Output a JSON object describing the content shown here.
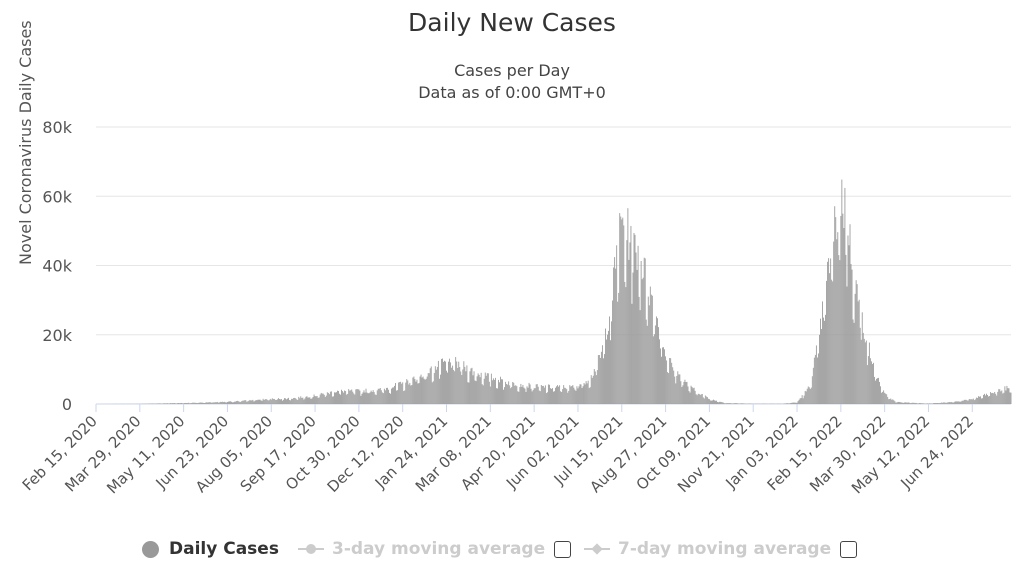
{
  "chart_data": {
    "type": "bar",
    "title": "Daily New Cases",
    "subtitle": [
      "Cases per Day",
      "Data as of 0:00 GMT+0"
    ],
    "ylabel": "Novel Coronavirus Daily Cases",
    "xlabel": "",
    "ylim": [
      0,
      80000
    ],
    "y_ticks": [
      "0",
      "20k",
      "40k",
      "60k",
      "80k"
    ],
    "x_tick_labels": [
      "Feb 15, 2020",
      "Mar 29, 2020",
      "May 11, 2020",
      "Jun 23, 2020",
      "Aug 05, 2020",
      "Sep 17, 2020",
      "Oct 30, 2020",
      "Dec 12, 2020",
      "Jan 24, 2021",
      "Mar 08, 2021",
      "Apr 20, 2021",
      "Jun 02, 2021",
      "Jul 15, 2021",
      "Aug 27, 2021",
      "Oct 09, 2021",
      "Nov 21, 2021",
      "Jan 03, 2022",
      "Feb 15, 2022",
      "Mar 30, 2022",
      "May 12, 2022",
      "Jun 24, 2022"
    ],
    "x_range": [
      "Feb 15, 2020",
      "Aug 01, 2022"
    ],
    "grid": true,
    "legend_position": "bottom",
    "bar_color": "#999999",
    "series": [
      {
        "name": "Daily Cases",
        "points": [
          [
            "2020-02-15",
            0
          ],
          [
            "2020-03-29",
            50
          ],
          [
            "2020-04-20",
            200
          ],
          [
            "2020-05-11",
            300
          ],
          [
            "2020-06-01",
            450
          ],
          [
            "2020-06-23",
            650
          ],
          [
            "2020-07-15",
            1100
          ],
          [
            "2020-08-05",
            1500
          ],
          [
            "2020-08-26",
            1700
          ],
          [
            "2020-09-17",
            2500
          ],
          [
            "2020-10-08",
            3800
          ],
          [
            "2020-10-30",
            3900
          ],
          [
            "2020-11-20",
            4200
          ],
          [
            "2020-12-12",
            6000
          ],
          [
            "2021-01-03",
            9000
          ],
          [
            "2021-01-24",
            12500
          ],
          [
            "2021-02-05",
            12000
          ],
          [
            "2021-02-20",
            9500
          ],
          [
            "2021-03-08",
            8000
          ],
          [
            "2021-03-25",
            6500
          ],
          [
            "2021-04-20",
            5200
          ],
          [
            "2021-05-10",
            5000
          ],
          [
            "2021-05-25",
            5000
          ],
          [
            "2021-06-02",
            5500
          ],
          [
            "2021-06-15",
            8000
          ],
          [
            "2021-06-25",
            15000
          ],
          [
            "2021-07-05",
            30000
          ],
          [
            "2021-07-10",
            45000
          ],
          [
            "2021-07-15",
            54000
          ],
          [
            "2021-07-22",
            50000
          ],
          [
            "2021-08-01",
            45000
          ],
          [
            "2021-08-10",
            35000
          ],
          [
            "2021-08-20",
            24000
          ],
          [
            "2021-08-27",
            15000
          ],
          [
            "2021-09-05",
            10000
          ],
          [
            "2021-09-20",
            5000
          ],
          [
            "2021-10-09",
            1500
          ],
          [
            "2021-10-25",
            300
          ],
          [
            "2021-11-21",
            100
          ],
          [
            "2021-12-20",
            100
          ],
          [
            "2022-01-03",
            500
          ],
          [
            "2022-01-15",
            5000
          ],
          [
            "2022-01-25",
            20000
          ],
          [
            "2022-02-05",
            45000
          ],
          [
            "2022-02-15",
            62000
          ],
          [
            "2022-02-20",
            58000
          ],
          [
            "2022-02-27",
            40000
          ],
          [
            "2022-03-08",
            25000
          ],
          [
            "2022-03-20",
            10000
          ],
          [
            "2022-03-30",
            3000
          ],
          [
            "2022-04-10",
            600
          ],
          [
            "2022-05-12",
            150
          ],
          [
            "2022-06-05",
            600
          ],
          [
            "2022-06-24",
            1500
          ],
          [
            "2022-07-10",
            3000
          ],
          [
            "2022-07-25",
            4500
          ],
          [
            "2022-08-01",
            5000
          ]
        ]
      },
      {
        "name": "3-day moving average",
        "visible": false
      },
      {
        "name": "7-day moving average",
        "visible": false
      }
    ]
  },
  "legend": {
    "daily": "Daily Cases",
    "ma3": "3-day moving average",
    "ma7": "7-day moving average"
  },
  "colors": {
    "bars": "#999999",
    "grid": "#e6e6e6",
    "axis": "#ccd6eb",
    "inactive": "#cccccc"
  }
}
